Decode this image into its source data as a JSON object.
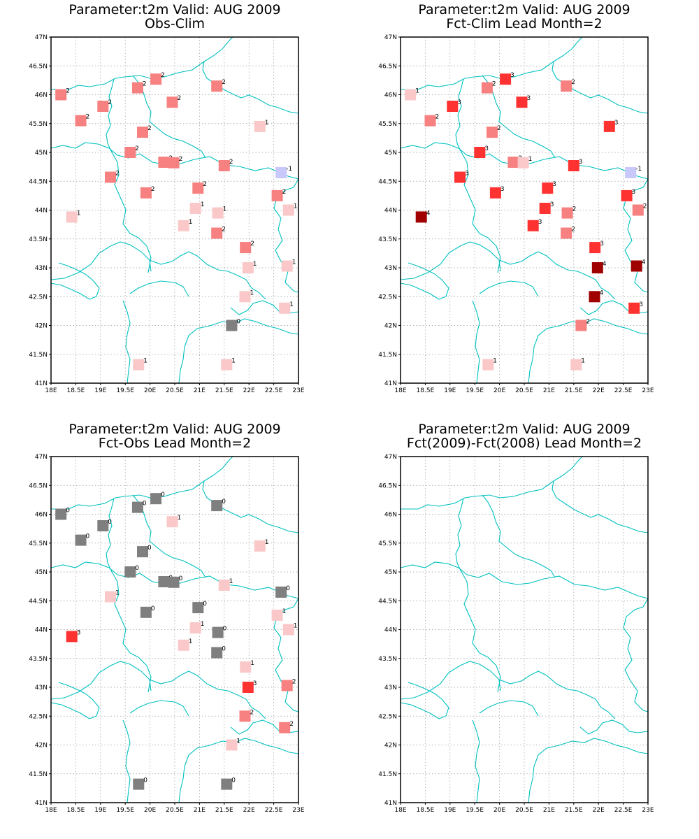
{
  "panels": [
    {
      "title": "Parameter:t2m Valid: AUG 2009",
      "subtitle": "Obs-Clim"
    },
    {
      "title": "Parameter:t2m Valid: AUG 2009",
      "subtitle": "Fct-Clim Lead Month=2"
    },
    {
      "title": "Parameter:t2m Valid: AUG 2009",
      "subtitle": "Fct-Obs Lead Month=2"
    },
    {
      "title": "Parameter:t2m Valid: AUG 2009",
      "subtitle": "Fct(2009)-Fct(2008) Lead Month=2"
    }
  ],
  "axes": {
    "x_ticks": [
      18,
      18.5,
      19,
      19.5,
      20,
      20.5,
      21,
      21.5,
      22,
      22.5,
      23
    ],
    "x_labels": [
      "18E",
      "18.5E",
      "19E",
      "19.5E",
      "20E",
      "20.5E",
      "21E",
      "21.5E",
      "22E",
      "22.5E",
      "23E"
    ],
    "y_ticks": [
      41,
      41.5,
      42,
      42.5,
      43,
      43.5,
      44,
      44.5,
      45,
      45.5,
      46,
      46.5,
      47
    ],
    "y_labels": [
      "41N",
      "41.5N",
      "42N",
      "42.5N",
      "43N",
      "43.5N",
      "44N",
      "44.5N",
      "45N",
      "45.5N",
      "46N",
      "46.5N",
      "47N"
    ],
    "lon_range": [
      18,
      23
    ],
    "lat_range": [
      41,
      47
    ],
    "grid": true
  },
  "colors": {
    "-1": "#c8c8fa",
    "0": "#7f7f7f",
    "1": "#fac8c8",
    "2": "#f78080",
    "3": "#ff3232",
    "4": "#a00000",
    "border": "#00c0c0",
    "grid": "#999999"
  },
  "chart_data": [
    {
      "type": "scatter",
      "title": "Parameter:t2m Valid: AUG 2009",
      "subtitle": "Obs-Clim",
      "points": [
        {
          "lon": 18.2,
          "lat": 46.0,
          "cat": 2
        },
        {
          "lon": 18.6,
          "lat": 45.55,
          "cat": 2
        },
        {
          "lon": 19.05,
          "lat": 45.8,
          "cat": 2
        },
        {
          "lon": 19.2,
          "lat": 44.57,
          "cat": 2
        },
        {
          "lon": 19.6,
          "lat": 45.0,
          "cat": 2
        },
        {
          "lon": 19.75,
          "lat": 46.12,
          "cat": 2
        },
        {
          "lon": 19.85,
          "lat": 45.35,
          "cat": 2
        },
        {
          "lon": 19.92,
          "lat": 44.3,
          "cat": 2
        },
        {
          "lon": 20.12,
          "lat": 46.27,
          "cat": 2
        },
        {
          "lon": 20.28,
          "lat": 44.83,
          "cat": 2
        },
        {
          "lon": 20.45,
          "lat": 45.87,
          "cat": 2
        },
        {
          "lon": 20.48,
          "lat": 44.82,
          "cat": 2
        },
        {
          "lon": 20.97,
          "lat": 44.38,
          "cat": 2
        },
        {
          "lon": 21.35,
          "lat": 46.15,
          "cat": 2
        },
        {
          "lon": 21.5,
          "lat": 44.77,
          "cat": 2
        },
        {
          "lon": 21.35,
          "lat": 43.6,
          "cat": 2
        },
        {
          "lon": 21.93,
          "lat": 43.35,
          "cat": 2
        },
        {
          "lon": 22.57,
          "lat": 44.25,
          "cat": 2
        },
        {
          "lon": 22.22,
          "lat": 45.45,
          "cat": 1
        },
        {
          "lon": 18.42,
          "lat": 43.88,
          "cat": 1
        },
        {
          "lon": 20.68,
          "lat": 43.73,
          "cat": 1
        },
        {
          "lon": 20.92,
          "lat": 44.03,
          "cat": 1
        },
        {
          "lon": 21.37,
          "lat": 43.95,
          "cat": 1
        },
        {
          "lon": 21.98,
          "lat": 43.0,
          "cat": 1
        },
        {
          "lon": 21.92,
          "lat": 42.5,
          "cat": 1
        },
        {
          "lon": 22.8,
          "lat": 44.0,
          "cat": 1
        },
        {
          "lon": 22.77,
          "lat": 43.03,
          "cat": 1
        },
        {
          "lon": 22.72,
          "lat": 42.3,
          "cat": 1
        },
        {
          "lon": 19.77,
          "lat": 41.32,
          "cat": 1
        },
        {
          "lon": 21.55,
          "lat": 41.32,
          "cat": 1
        },
        {
          "lon": 21.65,
          "lat": 42.0,
          "cat": 0
        },
        {
          "lon": 22.65,
          "lat": 44.65,
          "cat": -1
        }
      ]
    },
    {
      "type": "scatter",
      "title": "Parameter:t2m Valid: AUG 2009",
      "subtitle": "Fct-Clim Lead Month=2",
      "points": [
        {
          "lon": 18.2,
          "lat": 46.0,
          "cat": 1
        },
        {
          "lon": 18.6,
          "lat": 45.55,
          "cat": 2
        },
        {
          "lon": 19.05,
          "lat": 45.8,
          "cat": 3
        },
        {
          "lon": 19.2,
          "lat": 44.57,
          "cat": 3
        },
        {
          "lon": 19.6,
          "lat": 45.0,
          "cat": 3
        },
        {
          "lon": 19.75,
          "lat": 46.12,
          "cat": 2
        },
        {
          "lon": 19.85,
          "lat": 45.35,
          "cat": 2
        },
        {
          "lon": 19.92,
          "lat": 44.3,
          "cat": 3
        },
        {
          "lon": 20.12,
          "lat": 46.27,
          "cat": 3
        },
        {
          "lon": 20.28,
          "lat": 44.83,
          "cat": 2
        },
        {
          "lon": 20.45,
          "lat": 45.87,
          "cat": 3
        },
        {
          "lon": 20.48,
          "lat": 44.82,
          "cat": 1
        },
        {
          "lon": 20.97,
          "lat": 44.38,
          "cat": 3
        },
        {
          "lon": 21.35,
          "lat": 46.15,
          "cat": 2
        },
        {
          "lon": 21.5,
          "lat": 44.77,
          "cat": 3
        },
        {
          "lon": 21.35,
          "lat": 43.6,
          "cat": 2
        },
        {
          "lon": 21.93,
          "lat": 43.35,
          "cat": 3
        },
        {
          "lon": 22.57,
          "lat": 44.25,
          "cat": 3
        },
        {
          "lon": 22.22,
          "lat": 45.45,
          "cat": 3
        },
        {
          "lon": 18.42,
          "lat": 43.88,
          "cat": 4
        },
        {
          "lon": 20.68,
          "lat": 43.73,
          "cat": 3
        },
        {
          "lon": 20.92,
          "lat": 44.03,
          "cat": 3
        },
        {
          "lon": 21.37,
          "lat": 43.95,
          "cat": 2
        },
        {
          "lon": 21.98,
          "lat": 43.0,
          "cat": 4
        },
        {
          "lon": 21.92,
          "lat": 42.5,
          "cat": 4
        },
        {
          "lon": 22.8,
          "lat": 44.0,
          "cat": 2
        },
        {
          "lon": 22.77,
          "lat": 43.03,
          "cat": 4
        },
        {
          "lon": 22.72,
          "lat": 42.3,
          "cat": 3
        },
        {
          "lon": 19.77,
          "lat": 41.32,
          "cat": 1
        },
        {
          "lon": 21.55,
          "lat": 41.32,
          "cat": 1
        },
        {
          "lon": 21.65,
          "lat": 42.0,
          "cat": 2
        },
        {
          "lon": 22.65,
          "lat": 44.65,
          "cat": -1
        }
      ]
    },
    {
      "type": "scatter",
      "title": "Parameter:t2m Valid: AUG 2009",
      "subtitle": "Fct-Obs Lead Month=2",
      "points": [
        {
          "lon": 18.2,
          "lat": 46.0,
          "cat": 0
        },
        {
          "lon": 18.6,
          "lat": 45.55,
          "cat": 0
        },
        {
          "lon": 19.05,
          "lat": 45.8,
          "cat": 0
        },
        {
          "lon": 19.2,
          "lat": 44.57,
          "cat": 1
        },
        {
          "lon": 19.6,
          "lat": 45.0,
          "cat": 0
        },
        {
          "lon": 19.75,
          "lat": 46.12,
          "cat": 0
        },
        {
          "lon": 19.85,
          "lat": 45.35,
          "cat": 0
        },
        {
          "lon": 19.92,
          "lat": 44.3,
          "cat": 0
        },
        {
          "lon": 20.12,
          "lat": 46.27,
          "cat": 0
        },
        {
          "lon": 20.28,
          "lat": 44.83,
          "cat": 0
        },
        {
          "lon": 20.45,
          "lat": 45.87,
          "cat": 1
        },
        {
          "lon": 20.48,
          "lat": 44.82,
          "cat": 0
        },
        {
          "lon": 20.97,
          "lat": 44.38,
          "cat": 0
        },
        {
          "lon": 21.35,
          "lat": 46.15,
          "cat": 0
        },
        {
          "lon": 21.5,
          "lat": 44.77,
          "cat": 1
        },
        {
          "lon": 21.35,
          "lat": 43.6,
          "cat": 0
        },
        {
          "lon": 21.93,
          "lat": 43.35,
          "cat": 1
        },
        {
          "lon": 22.57,
          "lat": 44.25,
          "cat": 1
        },
        {
          "lon": 22.22,
          "lat": 45.45,
          "cat": 1
        },
        {
          "lon": 18.42,
          "lat": 43.88,
          "cat": 3
        },
        {
          "lon": 20.68,
          "lat": 43.73,
          "cat": 1
        },
        {
          "lon": 20.92,
          "lat": 44.03,
          "cat": 1
        },
        {
          "lon": 21.37,
          "lat": 43.95,
          "cat": 0
        },
        {
          "lon": 21.98,
          "lat": 43.0,
          "cat": 3
        },
        {
          "lon": 21.92,
          "lat": 42.5,
          "cat": 2
        },
        {
          "lon": 22.8,
          "lat": 44.0,
          "cat": 1
        },
        {
          "lon": 22.77,
          "lat": 43.03,
          "cat": 2
        },
        {
          "lon": 22.72,
          "lat": 42.3,
          "cat": 2
        },
        {
          "lon": 19.77,
          "lat": 41.32,
          "cat": 0
        },
        {
          "lon": 21.55,
          "lat": 41.32,
          "cat": 0
        },
        {
          "lon": 21.65,
          "lat": 42.0,
          "cat": 1
        },
        {
          "lon": 22.65,
          "lat": 44.65,
          "cat": 0
        }
      ]
    },
    {
      "type": "scatter",
      "title": "Parameter:t2m Valid: AUG 2009",
      "subtitle": "Fct(2009)-Fct(2008) Lead Month=2",
      "points": []
    }
  ]
}
